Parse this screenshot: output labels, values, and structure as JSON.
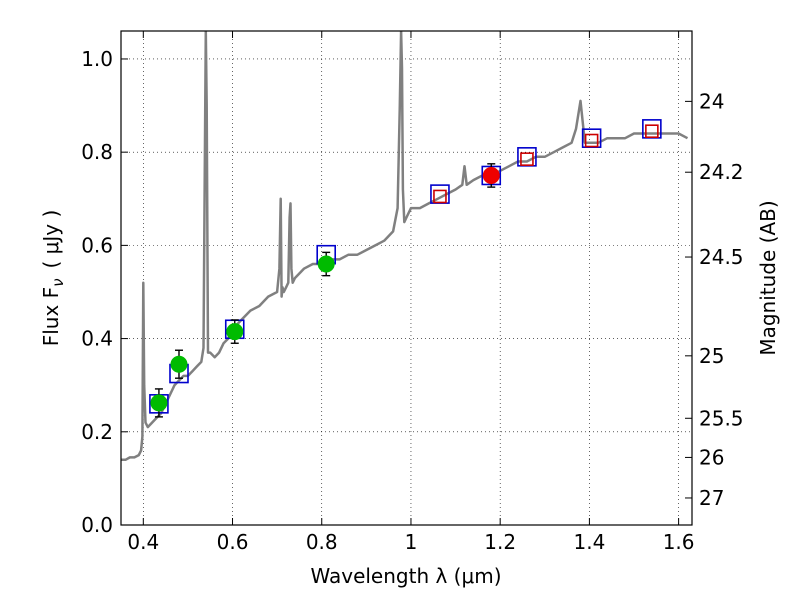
{
  "chart_data": {
    "type": "scatter",
    "title": "",
    "xlabel": "Wavelength  λ (μm)",
    "ylabel": "Flux  F",
    "ylabel_sub": "ν",
    "ylabel_unit": "( μJy )",
    "y2label": "Magnitude (AB)",
    "xlim": [
      0.35,
      1.63
    ],
    "ylim": [
      0.0,
      1.06
    ],
    "x_ticks": [
      0.4,
      0.6,
      0.8,
      1.0,
      1.2,
      1.4,
      1.6
    ],
    "x_tick_labels": [
      "0.4",
      "0.6",
      "0.8",
      "1",
      "1.2",
      "1.4",
      "1.6"
    ],
    "y_ticks": [
      0.0,
      0.2,
      0.4,
      0.6,
      0.8,
      1.0
    ],
    "y_tick_labels": [
      "0.0",
      "0.2",
      "0.4",
      "0.6",
      "0.8",
      "1.0"
    ],
    "y2_ticks": [
      {
        "label": "24",
        "flux": 0.909
      },
      {
        "label": "24.2",
        "flux": 0.757
      },
      {
        "label": "24.5",
        "flux": 0.575
      },
      {
        "label": "25",
        "flux": 0.363
      },
      {
        "label": "25.5",
        "flux": 0.229
      },
      {
        "label": "26",
        "flux": 0.145
      },
      {
        "label": "27",
        "flux": 0.058
      }
    ],
    "grid": true,
    "legend": "none",
    "series": [
      {
        "kind": "model-spectrum",
        "color": "#808080",
        "x": [
          0.35,
          0.36,
          0.37,
          0.38,
          0.39,
          0.395,
          0.398,
          0.4,
          0.402,
          0.405,
          0.41,
          0.42,
          0.43,
          0.44,
          0.45,
          0.46,
          0.47,
          0.48,
          0.49,
          0.5,
          0.51,
          0.52,
          0.53,
          0.535,
          0.538,
          0.54,
          0.542,
          0.545,
          0.55,
          0.56,
          0.57,
          0.58,
          0.59,
          0.6,
          0.62,
          0.64,
          0.66,
          0.68,
          0.7,
          0.705,
          0.708,
          0.71,
          0.712,
          0.715,
          0.72,
          0.725,
          0.728,
          0.73,
          0.732,
          0.735,
          0.74,
          0.76,
          0.78,
          0.8,
          0.82,
          0.84,
          0.86,
          0.88,
          0.9,
          0.92,
          0.94,
          0.96,
          0.97,
          0.975,
          0.978,
          0.98,
          0.982,
          0.985,
          0.99,
          1.0,
          1.02,
          1.04,
          1.06,
          1.08,
          1.1,
          1.115,
          1.12,
          1.125,
          1.14,
          1.16,
          1.18,
          1.2,
          1.22,
          1.24,
          1.26,
          1.28,
          1.3,
          1.32,
          1.34,
          1.36,
          1.37,
          1.38,
          1.39,
          1.4,
          1.42,
          1.44,
          1.46,
          1.48,
          1.5,
          1.52,
          1.54,
          1.56,
          1.58,
          1.6,
          1.62
        ],
        "y": [
          0.14,
          0.14,
          0.145,
          0.145,
          0.15,
          0.16,
          0.19,
          0.52,
          0.3,
          0.22,
          0.21,
          0.22,
          0.23,
          0.24,
          0.26,
          0.28,
          0.3,
          0.31,
          0.32,
          0.32,
          0.33,
          0.34,
          0.35,
          0.38,
          0.8,
          1.06,
          0.9,
          0.37,
          0.37,
          0.36,
          0.37,
          0.39,
          0.4,
          0.42,
          0.44,
          0.46,
          0.47,
          0.49,
          0.5,
          0.55,
          0.7,
          0.49,
          0.51,
          0.5,
          0.51,
          0.52,
          0.66,
          0.69,
          0.55,
          0.52,
          0.53,
          0.55,
          0.56,
          0.56,
          0.57,
          0.57,
          0.58,
          0.58,
          0.59,
          0.6,
          0.61,
          0.63,
          0.68,
          0.9,
          1.06,
          0.98,
          0.72,
          0.65,
          0.66,
          0.68,
          0.68,
          0.69,
          0.7,
          0.71,
          0.72,
          0.73,
          0.77,
          0.73,
          0.74,
          0.75,
          0.75,
          0.76,
          0.77,
          0.78,
          0.78,
          0.79,
          0.79,
          0.8,
          0.81,
          0.82,
          0.85,
          0.91,
          0.82,
          0.82,
          0.82,
          0.83,
          0.83,
          0.83,
          0.84,
          0.84,
          0.84,
          0.84,
          0.84,
          0.84,
          0.83
        ]
      },
      {
        "kind": "model-bandpass",
        "marker": "open-square",
        "color": "#0000cc",
        "x": [
          0.435,
          0.48,
          0.605,
          0.81,
          1.065,
          1.18,
          1.26,
          1.405,
          1.54
        ],
        "y": [
          0.26,
          0.325,
          0.42,
          0.58,
          0.71,
          0.75,
          0.79,
          0.83,
          0.85
        ]
      },
      {
        "kind": "upper-limit",
        "marker": "open-square",
        "color": "#cc0000",
        "x": [
          1.065,
          1.26,
          1.405,
          1.54
        ],
        "y": [
          0.705,
          0.785,
          0.825,
          0.845
        ]
      },
      {
        "kind": "observed",
        "marker": "filled-circle",
        "color": "#00bb00",
        "x": [
          0.435,
          0.48,
          0.605,
          0.81
        ],
        "y": [
          0.262,
          0.345,
          0.415,
          0.56
        ],
        "yerr": [
          0.03,
          0.03,
          0.025,
          0.025
        ]
      },
      {
        "kind": "observed",
        "marker": "filled-circle",
        "color": "#ee0000",
        "x": [
          1.18
        ],
        "y": [
          0.75
        ],
        "yerr": [
          0.025
        ]
      }
    ]
  }
}
